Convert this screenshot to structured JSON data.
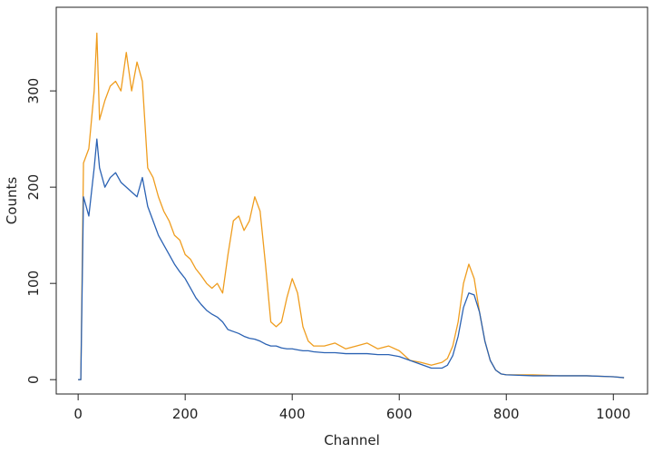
{
  "chart_data": {
    "type": "line",
    "x_label": "Channel",
    "y_label": "Counts",
    "x": [
      0,
      5,
      10,
      20,
      30,
      35,
      40,
      50,
      60,
      70,
      80,
      90,
      100,
      110,
      120,
      130,
      140,
      150,
      160,
      170,
      180,
      190,
      200,
      210,
      220,
      230,
      240,
      250,
      260,
      270,
      280,
      290,
      300,
      310,
      320,
      330,
      340,
      350,
      360,
      370,
      380,
      390,
      400,
      410,
      420,
      430,
      440,
      460,
      480,
      500,
      520,
      540,
      560,
      580,
      600,
      620,
      640,
      660,
      680,
      690,
      700,
      710,
      720,
      730,
      740,
      750,
      760,
      770,
      780,
      790,
      800,
      850,
      900,
      950,
      1000,
      1020
    ],
    "series": [
      {
        "color": "#2b62b3",
        "values": [
          0,
          0,
          190,
          170,
          220,
          250,
          220,
          200,
          210,
          215,
          205,
          200,
          195,
          190,
          210,
          180,
          165,
          150,
          140,
          130,
          120,
          112,
          105,
          95,
          85,
          78,
          72,
          68,
          65,
          60,
          52,
          50,
          48,
          45,
          43,
          42,
          40,
          37,
          35,
          35,
          33,
          32,
          32,
          31,
          30,
          30,
          29,
          28,
          28,
          27,
          27,
          27,
          26,
          26,
          24,
          20,
          16,
          12,
          12,
          15,
          25,
          45,
          75,
          90,
          88,
          70,
          40,
          20,
          10,
          6,
          5,
          4,
          4,
          4,
          3,
          2
        ]
      },
      {
        "color": "#ef9d1f",
        "values": [
          0,
          0,
          225,
          240,
          300,
          360,
          270,
          290,
          305,
          310,
          300,
          340,
          300,
          330,
          310,
          220,
          210,
          190,
          175,
          165,
          150,
          145,
          130,
          125,
          115,
          108,
          100,
          95,
          100,
          90,
          130,
          165,
          170,
          155,
          165,
          190,
          175,
          120,
          60,
          55,
          60,
          85,
          105,
          90,
          55,
          40,
          35,
          35,
          38,
          32,
          35,
          38,
          32,
          35,
          30,
          20,
          18,
          15,
          18,
          22,
          35,
          60,
          100,
          120,
          105,
          70,
          40,
          20,
          10,
          6,
          5,
          5,
          4,
          4,
          3,
          2
        ]
      }
    ],
    "xlim": [
      -40.92,
      1063.92
    ],
    "ylim": [
      -14.9,
      386.9
    ],
    "xticks": [
      0,
      200,
      400,
      600,
      800,
      1000
    ],
    "yticks": [
      0,
      100,
      200,
      300
    ]
  }
}
